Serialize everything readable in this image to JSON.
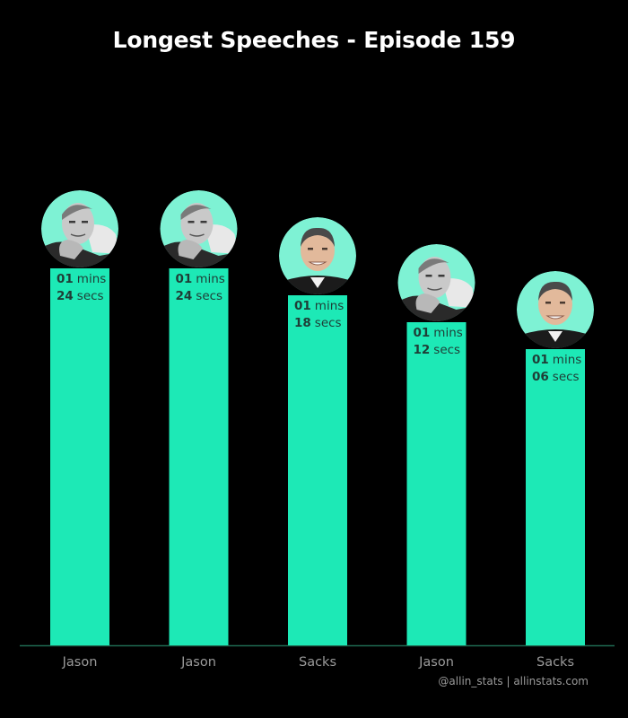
{
  "chart_data": {
    "type": "bar",
    "title": "Longest Speeches - Episode 159",
    "categories": [
      "Jason",
      "Jason",
      "Sacks",
      "Jason",
      "Sacks"
    ],
    "values_seconds": [
      84,
      84,
      78,
      72,
      66
    ],
    "data_labels": [
      {
        "mins": "01",
        "mins_unit": "mins",
        "secs": "24",
        "secs_unit": "secs"
      },
      {
        "mins": "01",
        "mins_unit": "mins",
        "secs": "24",
        "secs_unit": "secs"
      },
      {
        "mins": "01",
        "mins_unit": "mins",
        "secs": "18",
        "secs_unit": "secs"
      },
      {
        "mins": "01",
        "mins_unit": "mins",
        "secs": "12",
        "secs_unit": "secs"
      },
      {
        "mins": "01",
        "mins_unit": "mins",
        "secs": "06",
        "secs_unit": "secs"
      }
    ],
    "avatars": [
      "jason-portrait",
      "jason-portrait",
      "sacks-portrait",
      "jason-portrait",
      "sacks-portrait"
    ],
    "ylim": [
      0,
      100
    ],
    "grid": false,
    "legend": "none",
    "bar_color": "#1de9b6",
    "avatar_bg_color": "#7ef2d4",
    "axis_color": "#1e6b52",
    "tick_label_color": "#9a9a9a",
    "label_text_color": "#1f3d36"
  },
  "footer": "@allin_stats | allinstats.com"
}
